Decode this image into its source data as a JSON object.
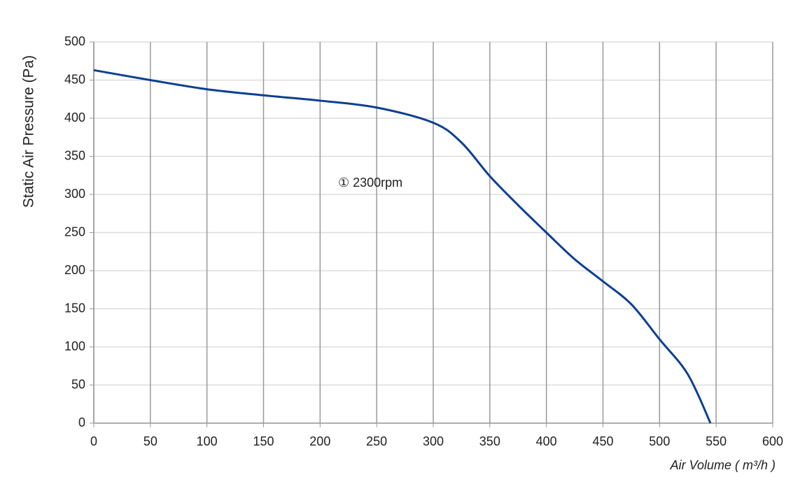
{
  "chart_data": {
    "type": "line",
    "y_label": "Static Air Pressure  (Pa)",
    "x_label": "Air Volume ( m³/h )",
    "annotation": "① 2300rpm",
    "x": [
      0,
      50,
      100,
      150,
      200,
      250,
      300,
      325,
      350,
      375,
      400,
      425,
      450,
      475,
      500,
      525,
      545
    ],
    "series": [
      {
        "name": "2300rpm",
        "color": "#0b3f92",
        "values": [
          463,
          450,
          438,
          430,
          423,
          414,
          394,
          368,
          324,
          286,
          250,
          215,
          186,
          156,
          110,
          64,
          0
        ]
      }
    ],
    "xlim": [
      0,
      600
    ],
    "xticks": [
      0,
      50,
      100,
      150,
      200,
      250,
      300,
      350,
      400,
      450,
      500,
      550,
      600
    ],
    "ylim": [
      0,
      500
    ],
    "yticks": [
      0,
      50,
      100,
      150,
      200,
      250,
      300,
      350,
      400,
      450,
      500
    ],
    "grid": true
  }
}
